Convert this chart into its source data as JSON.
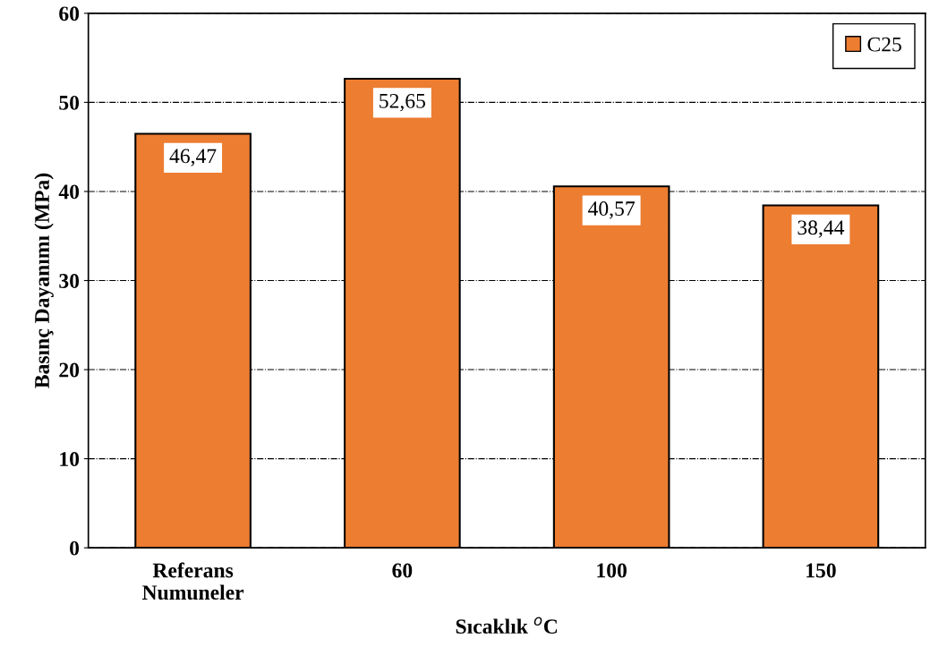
{
  "chart_data": {
    "type": "bar",
    "xlabel": "Sıcaklık $^{o}$C",
    "ylabel": "Basınç Dayanımı (MPa)",
    "categories": [
      "Referans\nNumuneler",
      "60",
      "100",
      "150"
    ],
    "series": [
      {
        "name": "C25",
        "color": "#ed7d31",
        "values": [
          46.47,
          52.65,
          40.57,
          38.44
        ],
        "value_labels": [
          "46,47",
          "52,65",
          "40,57",
          "38,44"
        ]
      }
    ],
    "ylim": [
      0,
      60
    ],
    "yticks": [
      0,
      10,
      20,
      30,
      40,
      50,
      60
    ],
    "grid": "y",
    "legend": "top right"
  }
}
